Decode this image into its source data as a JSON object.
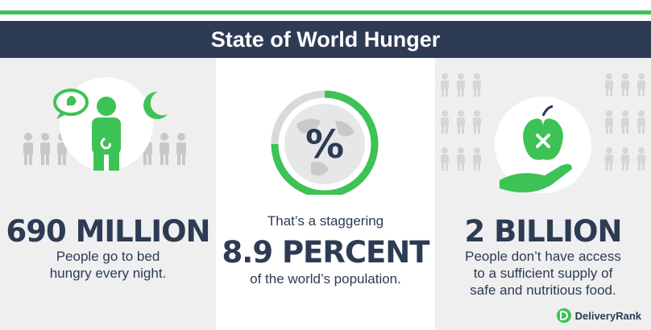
{
  "header": {
    "title": "State of World Hunger"
  },
  "panels": [
    {
      "headline": "690 MILLION",
      "text_lines": [
        "People go to bed",
        "hungry every night."
      ]
    },
    {
      "intro": "That’s a staggering",
      "headline": "8.9 PERCENT",
      "text": "of the world’s population."
    },
    {
      "headline": "2 BILLION",
      "text_lines": [
        "People don’t have access",
        "to a sufficient supply of",
        "safe and nutritious food."
      ]
    }
  ],
  "brand": {
    "name": "DeliveryRank"
  },
  "icons": [
    "hungry-person-icon",
    "percent-globe-icon",
    "apple-in-hand-icon",
    "moon-icon",
    "speech-bubble-icon"
  ],
  "colors": {
    "green": "#3dc255",
    "navy": "#2d3b55",
    "panel_gray": "#efefef",
    "figure_gray": "#c8c8c8"
  }
}
